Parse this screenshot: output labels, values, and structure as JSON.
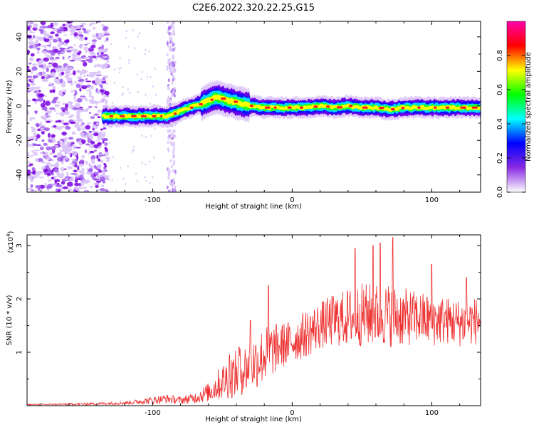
{
  "title": "C2E6.2022.320.22.25.G15",
  "chart_data": [
    {
      "type": "heatmap",
      "xlabel": "Height of straight line (km)",
      "ylabel": "Frequency (Hz)",
      "xlim": [
        -190,
        135
      ],
      "ylim": [
        -50,
        49
      ],
      "xticks": [
        -100,
        0,
        100
      ],
      "yticks": [
        -40,
        -20,
        0,
        20,
        40
      ],
      "colorbar": {
        "label": "Normalized spectral amplitude",
        "range": [
          0,
          1
        ],
        "ticks": [
          "0.0",
          "0.2",
          "0.4",
          "0.6",
          "0.8"
        ],
        "tick_values": [
          0,
          0.2,
          0.4,
          0.6,
          0.8
        ],
        "colormap": [
          "#ffffff",
          "#8a2be2",
          "#0000ff",
          "#00ffff",
          "#00ff00",
          "#ffff00",
          "#ff0000",
          "#ff00aa"
        ]
      },
      "ridge": {
        "x": [
          -135,
          -120,
          -100,
          -90,
          -80,
          -70,
          -60,
          -55,
          -50,
          -40,
          -35,
          -30,
          -20,
          -10,
          0,
          10,
          20,
          30,
          40,
          50,
          60,
          70,
          80,
          90,
          100,
          110,
          120,
          135
        ],
        "freq": [
          -6,
          -6,
          -6,
          -6,
          -3,
          0,
          3,
          5,
          4,
          2,
          1,
          0,
          -1,
          -1,
          -1,
          -1,
          0,
          -1,
          0,
          -1,
          -1,
          -2,
          -1,
          -1,
          -1,
          -1,
          -1,
          -1
        ]
      },
      "noise_region": {
        "x": [
          -190,
          -132
        ]
      },
      "noise_stripes": [
        -88,
        -85
      ]
    },
    {
      "type": "line",
      "xlabel": "Height of straight line (km)",
      "ylabel": "SNR (10 * v/v)",
      "scale_label": "(x10",
      "scale_exp": "4",
      "scale_close": ")",
      "xlim": [
        -190,
        135
      ],
      "ylim": [
        0,
        3.2
      ],
      "xticks": [
        -100,
        0,
        100
      ],
      "yticks": [
        1,
        2,
        3
      ],
      "color": "#ee3333",
      "envelope": {
        "x": [
          -190,
          -150,
          -120,
          -100,
          -90,
          -80,
          -70,
          -60,
          -50,
          -40,
          -30,
          -20,
          -10,
          0,
          10,
          20,
          30,
          40,
          50,
          60,
          70,
          80,
          90,
          100,
          110,
          120,
          135
        ],
        "mean": [
          0.02,
          0.03,
          0.05,
          0.1,
          0.13,
          0.1,
          0.14,
          0.25,
          0.45,
          0.6,
          0.75,
          0.95,
          1.1,
          1.2,
          1.35,
          1.5,
          1.6,
          1.65,
          1.7,
          1.7,
          1.7,
          1.65,
          1.65,
          1.6,
          1.6,
          1.55,
          1.6
        ],
        "spread": [
          0.01,
          0.02,
          0.03,
          0.07,
          0.08,
          0.07,
          0.1,
          0.18,
          0.35,
          0.45,
          0.5,
          0.55,
          0.45,
          0.4,
          0.45,
          0.45,
          0.5,
          0.55,
          0.6,
          0.6,
          0.6,
          0.55,
          0.5,
          0.5,
          0.45,
          0.45,
          0.45
        ]
      },
      "peaks": [
        {
          "x": -45,
          "y": 0.95
        },
        {
          "x": -38,
          "y": 1.1
        },
        {
          "x": -30,
          "y": 1.6
        },
        {
          "x": -17,
          "y": 2.25
        },
        {
          "x": 45,
          "y": 2.95
        },
        {
          "x": 58,
          "y": 3.0
        },
        {
          "x": 63,
          "y": 3.05
        },
        {
          "x": 72,
          "y": 3.15
        },
        {
          "x": 100,
          "y": 2.65
        },
        {
          "x": 125,
          "y": 2.4
        }
      ]
    }
  ]
}
